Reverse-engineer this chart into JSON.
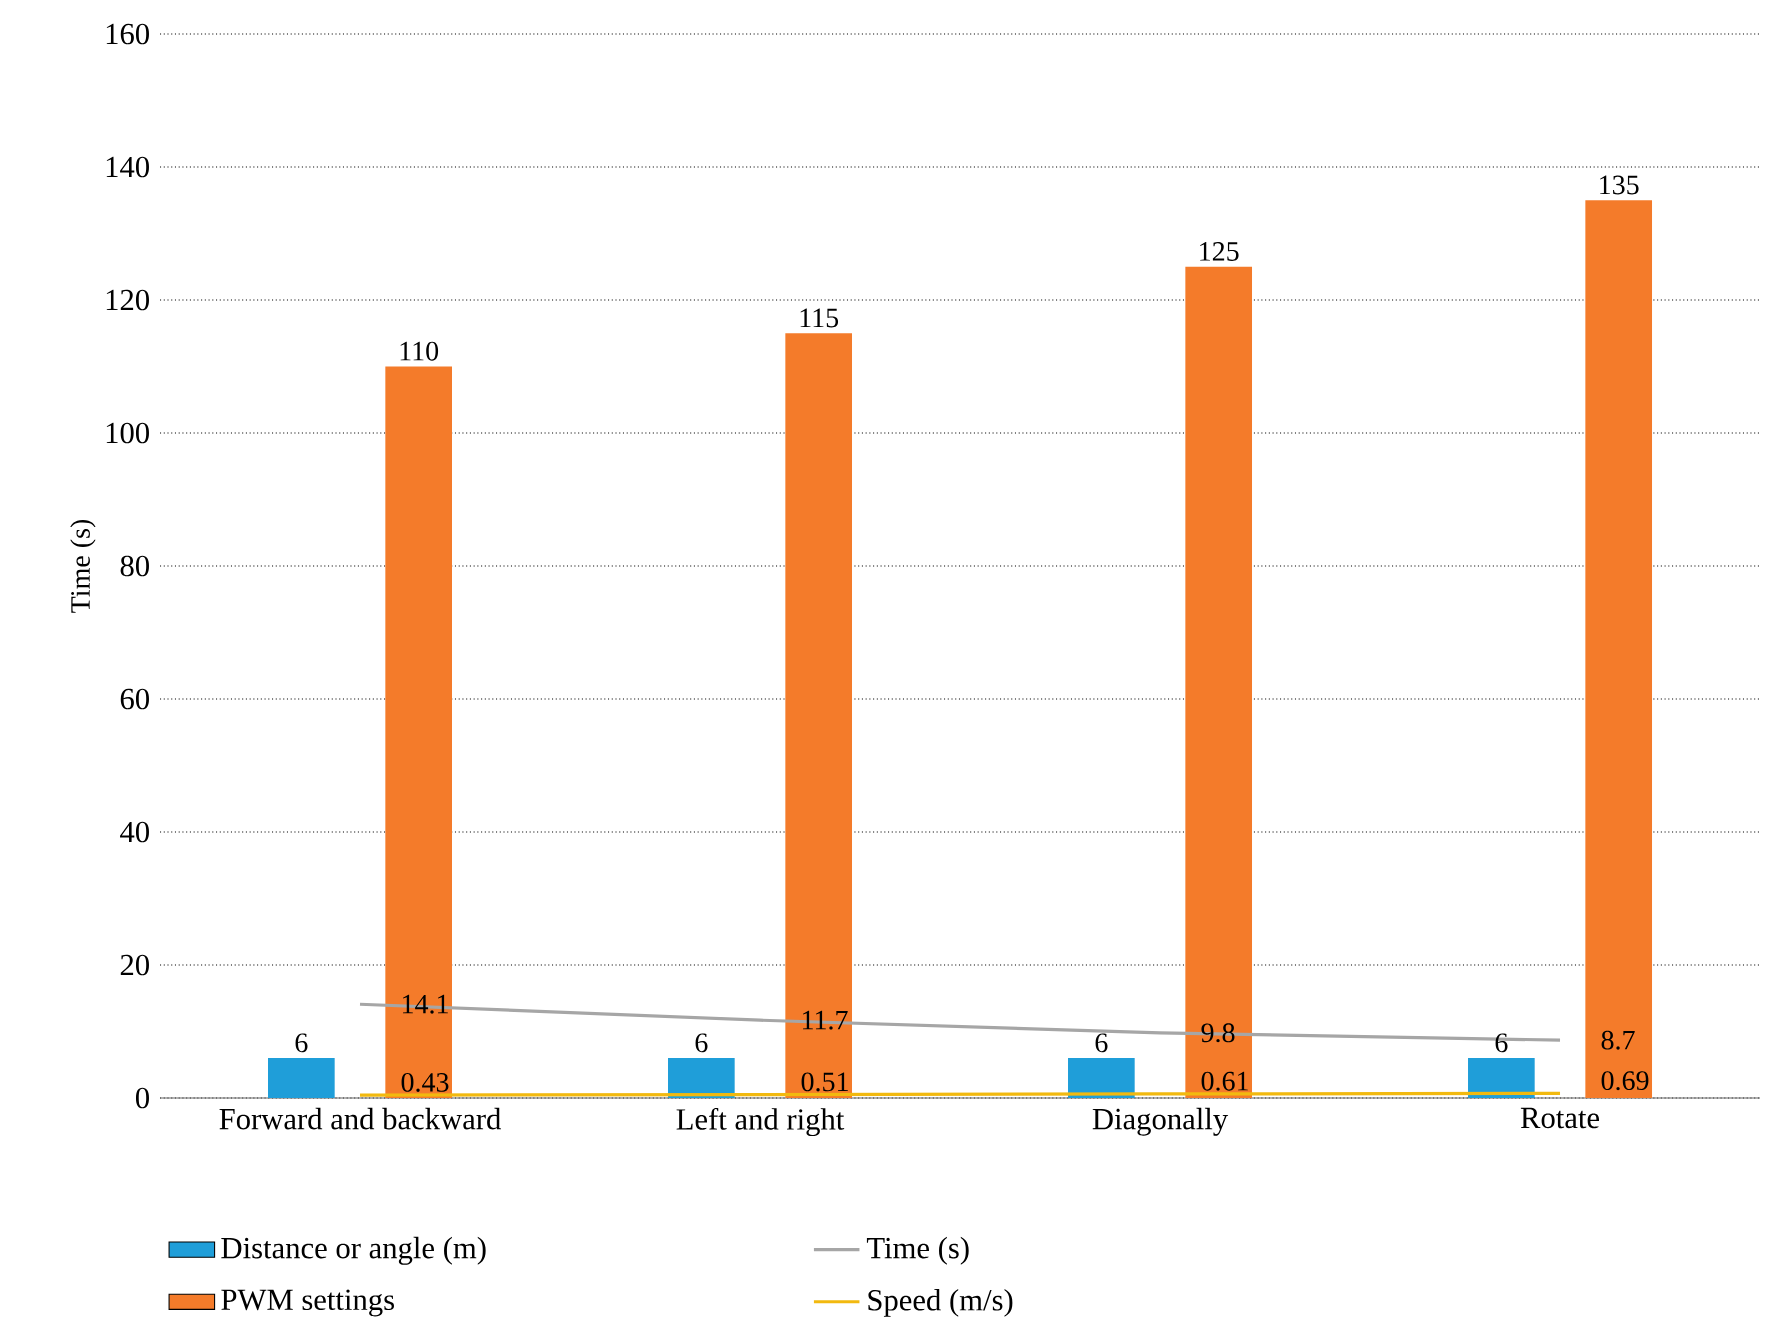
{
  "chart_data": {
    "type": "bar",
    "ylabel": "Time (s)",
    "categories": [
      "Forward and backward",
      "Left and right",
      "Diagonally",
      "Rotate"
    ],
    "series": [
      {
        "name": "Distance or angle (m)",
        "color": "#1f9ed9",
        "values": [
          6,
          6,
          6,
          6
        ]
      },
      {
        "name": "PWM settings",
        "color": "#f47b2a",
        "values": [
          110,
          115,
          125,
          135
        ]
      },
      {
        "name": "Time (s)",
        "type": "line",
        "color": "#a6a6a6",
        "values": [
          14.1,
          11.7,
          9.8,
          8.7
        ]
      },
      {
        "name": "Speed (m/s)",
        "type": "line",
        "color": "#f2b90f",
        "values": [
          0.43,
          0.51,
          0.61,
          0.69
        ]
      }
    ],
    "ylim": [
      0,
      160
    ],
    "yticks": [
      0,
      20,
      40,
      60,
      80,
      100,
      120,
      140,
      160
    ],
    "grid": "y",
    "legend": "bottom",
    "data_labels": true,
    "marker": "none",
    "line_style": "solid"
  }
}
